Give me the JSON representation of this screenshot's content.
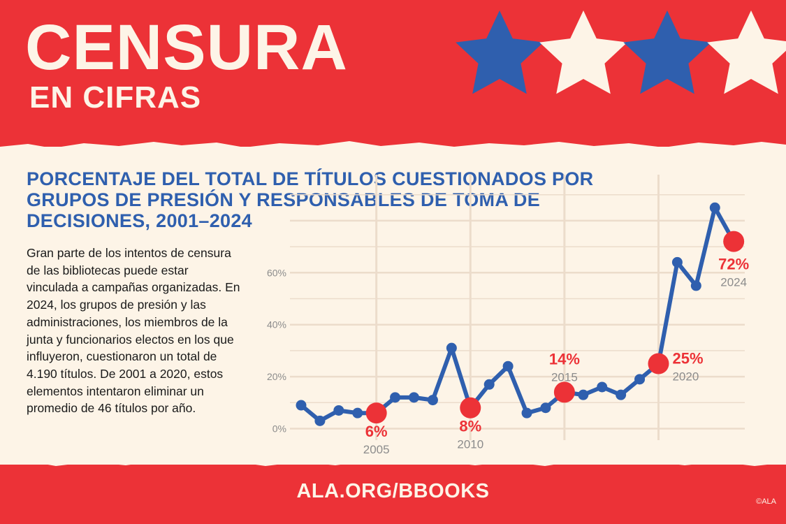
{
  "header": {
    "title": "CENSURA",
    "subtitle": "EN CIFRAS"
  },
  "description": "Gran parte de los intentos de censura de las bibliotecas puede estar vinculada a campañas organizadas. En 2024, los grupos de presión y las administraciones, los miembros de la junta y funcionarios electos en los que influyeron, cuestionaron un total de 4.190 títulos. De 2001 a 2020, estos elementos intentaron eliminar un promedio de 46 títulos por año.",
  "footer": {
    "url": "ALA.ORG/BBOOKS",
    "copyright": "©ALA"
  },
  "colors": {
    "red": "#ec3237",
    "cream": "#fdf4e7",
    "blue": "#2f5fae",
    "grid": "#ecdccb",
    "gray": "#8c8c8c"
  },
  "chart_data": {
    "type": "line",
    "title": "PORCENTAJE DEL TOTAL DE TÍTULOS CUESTIONADOS POR GRUPOS DE PRESIÓN Y RESPONSABLES DE TOMA DE DECISIONES, 2001–2024",
    "x": [
      2001,
      2002,
      2003,
      2004,
      2005,
      2006,
      2007,
      2008,
      2009,
      2010,
      2011,
      2012,
      2013,
      2014,
      2015,
      2016,
      2017,
      2018,
      2019,
      2020,
      2021,
      2022,
      2023,
      2024
    ],
    "series": [
      {
        "values": [
          9,
          3,
          7,
          6,
          6,
          12,
          12,
          11,
          31,
          8,
          17,
          24,
          6,
          8,
          14,
          13,
          16,
          13,
          19,
          25,
          64,
          55,
          85,
          72
        ]
      }
    ],
    "ylim": [
      0,
      85
    ],
    "yticks": [
      0,
      20,
      40,
      60
    ],
    "ytick_labels": [
      "0%",
      "20%",
      "40%",
      "60%"
    ],
    "grid": true,
    "highlights": [
      {
        "year": 2005,
        "value_label": "6%",
        "year_label": "2005"
      },
      {
        "year": 2010,
        "value_label": "8%",
        "year_label": "2010"
      },
      {
        "year": 2015,
        "value_label": "14%",
        "year_label": "2015"
      },
      {
        "year": 2020,
        "value_label": "25%",
        "year_label": "2020"
      },
      {
        "year": 2024,
        "value_label": "72%",
        "year_label": "2024"
      }
    ]
  }
}
